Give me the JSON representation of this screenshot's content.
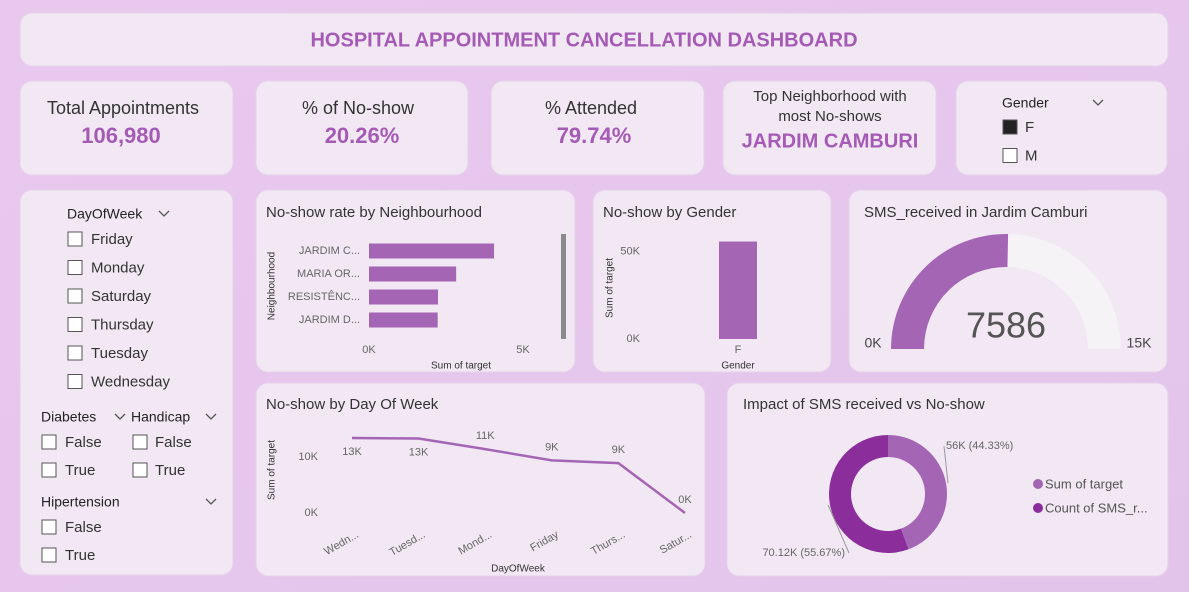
{
  "header": {
    "title": "HOSPITAL APPOINTMENT CANCELLATION DASHBOARD"
  },
  "kpis": [
    {
      "label": "Total Appointments",
      "value": "106,980"
    },
    {
      "label": "% of No-show",
      "value": "20.26%"
    },
    {
      "label": "% Attended",
      "value": "79.74%"
    }
  ],
  "top_neighborhood": {
    "label": [
      "Top Neighborhood with",
      "most No-shows"
    ],
    "value": "JARDIM CAMBURI"
  },
  "slicers": [
    {
      "title": "Gender",
      "options": [
        "F",
        "M"
      ],
      "selected": [
        true,
        false
      ]
    },
    {
      "title": "DayOfWeek",
      "options": [
        "Friday",
        "Monday",
        "Saturday",
        "Thursday",
        "Tuesday",
        "Wednesday"
      ]
    },
    {
      "title": "Diabetes",
      "options": [
        "False",
        "True"
      ]
    },
    {
      "title": "Handicap",
      "options": [
        "False",
        "True"
      ]
    },
    {
      "title": "Hipertension",
      "options": [
        "False",
        "True"
      ]
    }
  ],
  "chart_data": [
    {
      "type": "hbar",
      "title": "No-show rate by Neighbourhood",
      "categories": [
        "JARDIM C...",
        "MARIA OR...",
        "RESISTÊNC...",
        "JARDIM D..."
      ],
      "values": [
        4060,
        2830,
        2240,
        2230
      ],
      "color": "#a565b5",
      "xlim": [
        0,
        5000
      ],
      "xticks": [
        {
          "value": 0,
          "label": "0K"
        },
        {
          "value": 5000,
          "label": "5K"
        }
      ],
      "xlabel": "Sum of target",
      "ylabel": "Neighbourhood"
    },
    {
      "type": "bar",
      "title": "No-show by Gender",
      "categories": [
        "F"
      ],
      "values": [
        55700
      ],
      "color": "#a565b5",
      "ylim": [
        0,
        56000
      ],
      "yticks": [
        {
          "value": 0,
          "label": "0K"
        },
        {
          "value": 50000,
          "label": "50K"
        }
      ],
      "xlabel": "Gender",
      "ylabel": "Sum of target"
    },
    {
      "type": "gauge",
      "title": "SMS_received in Jardim Camburi",
      "value": 7586,
      "color": "#a565b5",
      "ylim": [
        0,
        15000
      ],
      "yticks": [
        {
          "value": 0,
          "label": "0K"
        },
        {
          "value": 15000,
          "label": "15K"
        }
      ]
    },
    {
      "type": "line",
      "title": "No-show by Day Of Week",
      "categories": [
        "Wedn...",
        "Tuesd...",
        "Mond...",
        "Friday",
        "Thurs...",
        "Satur..."
      ],
      "values": [
        13400,
        13300,
        11400,
        9400,
        8900,
        7
      ],
      "value_labels": [
        "13K",
        "13K",
        "11K",
        "9K",
        "9K",
        "0K"
      ],
      "color": "#a565b5",
      "ylim": [
        0,
        15000
      ],
      "yticks": [
        {
          "value": 0,
          "label": "0K"
        },
        {
          "value": 10000,
          "label": "10K"
        }
      ],
      "xlabel": "DayOfWeek",
      "ylabel": "Sum of target"
    },
    {
      "type": "donut",
      "title": "Impact of SMS received vs No-show",
      "series": [
        {
          "name": "Sum of target",
          "color": "#a565b5"
        },
        {
          "name": "Count of SMS_r...",
          "color": "#8b2e9c"
        }
      ],
      "values": [
        55840,
        70120
      ],
      "value_labels": [
        "56K (44.33%)",
        "70.12K (55.67%)"
      ]
    }
  ]
}
